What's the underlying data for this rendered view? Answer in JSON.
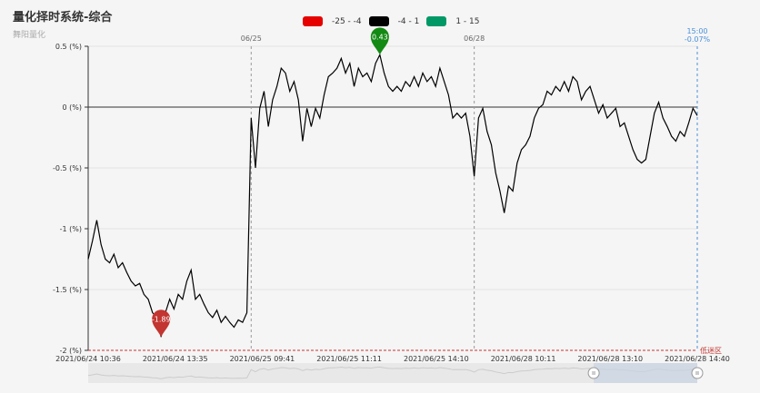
{
  "title": "量化择时系统-综合",
  "subtitle": "舞阳量化",
  "legend": [
    {
      "label": "-25 - -4",
      "color": "#e60000"
    },
    {
      "label": "-4 - 1",
      "color": "#000000"
    },
    {
      "label": "1 - 15",
      "color": "#009966"
    }
  ],
  "chart_data": {
    "type": "line",
    "ylim": [
      -2,
      0.5
    ],
    "yticks": [
      0.5,
      0,
      -0.5,
      -1,
      -1.5,
      -2
    ],
    "ytick_suffix": " (%)",
    "xtick_labels": [
      "2021/06/24 10:36",
      "2021/06/24 13:35",
      "2021/06/25 09:41",
      "2021/06/25 11:11",
      "2021/06/25 14:10",
      "2021/06/28 10:11",
      "2021/06/28 13:10",
      "2021/06/28 14:40"
    ],
    "date_dividers": [
      {
        "label": "06/25",
        "index": 38
      },
      {
        "label": "06/28",
        "index": 90
      }
    ],
    "end_marker": {
      "time": "15:00",
      "value": "-0.07%"
    },
    "low_zone_label": "低迷区",
    "max_point": {
      "index": 68,
      "value": 0.43,
      "label": "0.43",
      "color": "#138a13"
    },
    "min_point": {
      "index": 17,
      "value": -1.89,
      "label": "-1.89",
      "color": "#c23531"
    },
    "values": [
      -1.25,
      -1.1,
      -0.93,
      -1.13,
      -1.25,
      -1.28,
      -1.21,
      -1.32,
      -1.28,
      -1.36,
      -1.43,
      -1.47,
      -1.45,
      -1.54,
      -1.58,
      -1.69,
      -1.73,
      -1.89,
      -1.69,
      -1.58,
      -1.66,
      -1.54,
      -1.58,
      -1.43,
      -1.34,
      -1.58,
      -1.54,
      -1.62,
      -1.69,
      -1.73,
      -1.67,
      -1.77,
      -1.72,
      -1.77,
      -1.81,
      -1.75,
      -1.77,
      -1.69,
      -0.09,
      -0.5,
      -0.01,
      0.13,
      -0.16,
      0.06,
      0.17,
      0.32,
      0.28,
      0.13,
      0.21,
      0.06,
      -0.28,
      -0.01,
      -0.16,
      -0.01,
      -0.09,
      0.1,
      0.25,
      0.28,
      0.32,
      0.4,
      0.28,
      0.36,
      0.17,
      0.32,
      0.25,
      0.28,
      0.21,
      0.36,
      0.43,
      0.28,
      0.17,
      0.13,
      0.17,
      0.13,
      0.21,
      0.17,
      0.25,
      0.17,
      0.28,
      0.21,
      0.25,
      0.17,
      0.32,
      0.21,
      0.1,
      -0.09,
      -0.05,
      -0.09,
      -0.05,
      -0.24,
      -0.57,
      -0.09,
      -0.01,
      -0.2,
      -0.31,
      -0.54,
      -0.69,
      -0.87,
      -0.65,
      -0.69,
      -0.46,
      -0.35,
      -0.31,
      -0.24,
      -0.09,
      -0.01,
      0.02,
      0.13,
      0.1,
      0.17,
      0.13,
      0.21,
      0.13,
      0.25,
      0.21,
      0.06,
      0.13,
      0.17,
      0.06,
      -0.05,
      0.02,
      -0.09,
      -0.05,
      -0.01,
      -0.16,
      -0.13,
      -0.24,
      -0.35,
      -0.43,
      -0.46,
      -0.43,
      -0.24,
      -0.05,
      0.04,
      -0.09,
      -0.16,
      -0.24,
      -0.28,
      -0.2,
      -0.24,
      -0.13,
      -0.01,
      -0.07
    ],
    "zoom_range_percent": [
      83,
      100
    ]
  }
}
